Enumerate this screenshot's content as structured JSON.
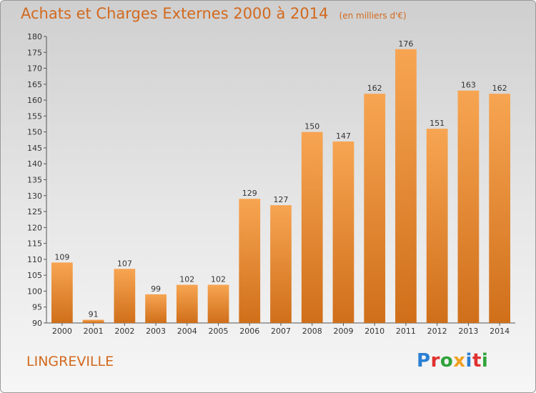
{
  "header": {
    "title": "Achats et Charges Externes 2000 à 2014",
    "unit": "(en milliers d'€)"
  },
  "footer": {
    "commune": "LINGREVILLE",
    "logo_text": "Proxiti"
  },
  "colors": {
    "title": "#d2691e",
    "bar_light": "#f7a552",
    "bar_dark": "#d06f1a",
    "logo_letters": [
      "#2a7fd4",
      "#e03030",
      "#2fa33a",
      "#f0a020",
      "#2a7fd4",
      "#e03030",
      "#2fa33a"
    ]
  },
  "chart_data": {
    "type": "bar",
    "title": "Achats et Charges Externes 2000 à 2014",
    "subtitle": "(en milliers d'€)",
    "xlabel": "",
    "ylabel": "",
    "categories": [
      "2000",
      "2001",
      "2002",
      "2003",
      "2004",
      "2005",
      "2006",
      "2007",
      "2008",
      "2009",
      "2010",
      "2011",
      "2012",
      "2013",
      "2014"
    ],
    "values": [
      109,
      91,
      107,
      99,
      102,
      102,
      129,
      127,
      150,
      147,
      162,
      176,
      151,
      163,
      162
    ],
    "ylim": [
      90,
      180
    ],
    "yticks": [
      90,
      95,
      100,
      105,
      110,
      115,
      120,
      125,
      130,
      135,
      140,
      145,
      150,
      155,
      160,
      165,
      170,
      175,
      180
    ],
    "grid": false,
    "legend": "none"
  }
}
